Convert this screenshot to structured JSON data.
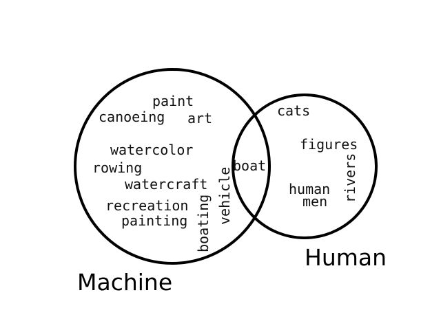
{
  "colors": {
    "stroke": "#000000",
    "text": "#111111",
    "background": "#ffffff"
  },
  "sets": {
    "machine": {
      "label": "Machine",
      "terms": [
        "paint",
        "canoeing",
        "art",
        "watercolor",
        "rowing",
        "watercraft",
        "recreation",
        "painting",
        "boating",
        "vehicle"
      ]
    },
    "human": {
      "label": "Human",
      "terms": [
        "cats",
        "figures",
        "rivers",
        "human",
        "men"
      ]
    },
    "intersection": {
      "terms": [
        "boat"
      ]
    }
  }
}
